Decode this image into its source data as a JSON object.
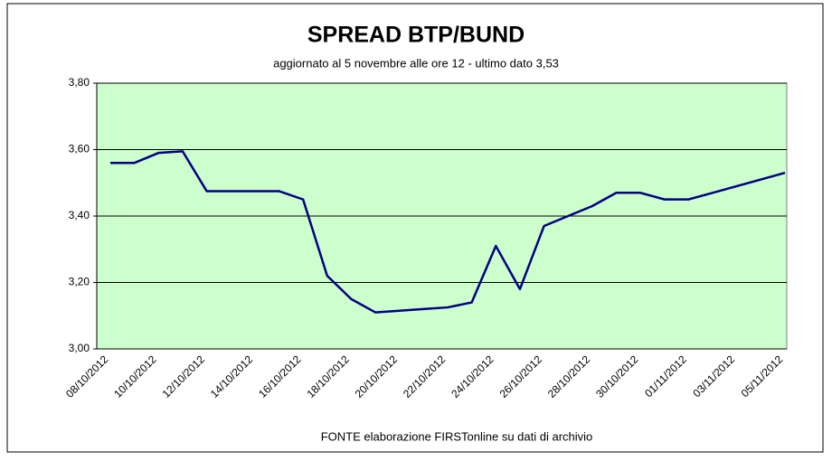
{
  "chart_data": {
    "type": "line",
    "title": "SPREAD  BTP/BUND",
    "subtitle": "aggiornato al 5 novembre alle ore 12 - ultimo dato 3,53",
    "source": "FONTE elaborazione FIRSTonline su dati di archivio",
    "categories": [
      "08/10/2012",
      null,
      "10/10/2012",
      null,
      "12/10/2012",
      null,
      "14/10/2012",
      null,
      "16/10/2012",
      null,
      "18/10/2012",
      null,
      "20/10/2012",
      null,
      "22/10/2012",
      null,
      "24/10/2012",
      null,
      "26/10/2012",
      null,
      "28/10/2012",
      null,
      "30/10/2012",
      null,
      "01/11/2012",
      null,
      "03/11/2012",
      null,
      "05/11/2012"
    ],
    "series": [
      {
        "name": "Spread",
        "color": "#000080",
        "values": [
          3.56,
          3.56,
          3.59,
          3.595,
          3.475,
          3.475,
          3.475,
          3.475,
          3.45,
          3.22,
          3.15,
          3.11,
          3.115,
          3.12,
          3.125,
          3.14,
          3.31,
          3.18,
          3.37,
          3.4,
          3.43,
          3.47,
          3.47,
          3.45,
          3.45,
          3.47,
          3.49,
          3.51,
          3.53
        ]
      }
    ],
    "ylim": [
      3.0,
      3.8
    ],
    "yticks": [
      {
        "value": 3.0,
        "label": "3,00"
      },
      {
        "value": 3.2,
        "label": "3,20"
      },
      {
        "value": 3.4,
        "label": "3,40"
      },
      {
        "value": 3.6,
        "label": "3,60"
      },
      {
        "value": 3.8,
        "label": "3,80"
      }
    ],
    "grid": true,
    "plot_background": "#ccffcc"
  }
}
